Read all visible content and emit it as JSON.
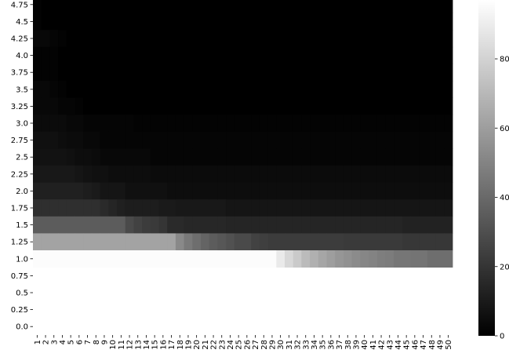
{
  "chart_data": {
    "type": "heatmap",
    "title": "",
    "xlabel": "",
    "ylabel": "",
    "x_categories": [
      "1",
      "2",
      "3",
      "4",
      "5",
      "6",
      "7",
      "8",
      "9",
      "10",
      "11",
      "12",
      "13",
      "14",
      "15",
      "16",
      "17",
      "18",
      "19",
      "20",
      "21",
      "22",
      "23",
      "24",
      "25",
      "26",
      "27",
      "28",
      "29",
      "30",
      "31",
      "32",
      "33",
      "34",
      "35",
      "36",
      "37",
      "38",
      "39",
      "40",
      "41",
      "42",
      "43",
      "44",
      "45",
      "46",
      "47",
      "48",
      "49",
      "50"
    ],
    "y_categories": [
      "4.75",
      "4.5",
      "4.25",
      "4.0",
      "3.75",
      "3.5",
      "3.25",
      "3.0",
      "2.75",
      "2.5",
      "2.25",
      "2.0",
      "1.75",
      "1.5",
      "1.25",
      "1.0",
      "0.75",
      "0.5",
      "0.25",
      "0.0"
    ],
    "cells": {
      "0": [
        [
          1,
          1
        ],
        [
          50,
          0
        ]
      ],
      "1": [
        [
          1,
          1
        ],
        [
          50,
          0
        ]
      ],
      "2": [
        [
          1,
          3
        ],
        [
          2,
          3
        ],
        [
          3,
          2
        ],
        [
          4,
          1
        ],
        [
          50,
          0
        ]
      ],
      "3": [
        [
          2,
          1
        ],
        [
          3,
          1
        ],
        [
          50,
          0
        ]
      ],
      "4": [
        [
          2,
          1
        ],
        [
          3,
          1
        ],
        [
          50,
          0
        ]
      ],
      "5": [
        [
          2,
          3
        ],
        [
          3,
          2
        ],
        [
          4,
          1
        ],
        [
          50,
          0
        ]
      ],
      "6": [
        [
          2,
          3
        ],
        [
          3,
          3
        ],
        [
          4,
          2
        ],
        [
          5,
          2
        ],
        [
          6,
          1
        ],
        [
          50,
          0
        ]
      ],
      "7": [
        [
          3,
          4
        ],
        [
          4,
          4
        ],
        [
          5,
          3
        ],
        [
          6,
          3
        ],
        [
          7,
          2
        ],
        [
          8,
          2
        ],
        [
          9,
          2
        ],
        [
          12,
          2
        ],
        [
          50,
          1
        ]
      ],
      "8": [
        [
          3,
          6
        ],
        [
          4,
          5
        ],
        [
          5,
          4
        ],
        [
          6,
          4
        ],
        [
          7,
          3
        ],
        [
          8,
          3
        ],
        [
          12,
          2
        ],
        [
          50,
          2
        ]
      ],
      "9": [
        [
          4,
          7
        ],
        [
          5,
          6
        ],
        [
          6,
          5
        ],
        [
          7,
          5
        ],
        [
          8,
          4
        ],
        [
          14,
          3
        ],
        [
          50,
          2
        ]
      ],
      "10": [
        [
          5,
          9
        ],
        [
          6,
          8
        ],
        [
          7,
          7
        ],
        [
          9,
          6
        ],
        [
          14,
          5
        ],
        [
          50,
          4
        ]
      ],
      "11": [
        [
          6,
          12
        ],
        [
          7,
          11
        ],
        [
          8,
          10
        ],
        [
          11,
          8
        ],
        [
          16,
          6
        ],
        [
          50,
          5
        ]
      ],
      "12": [
        [
          8,
          18
        ],
        [
          9,
          16
        ],
        [
          10,
          14
        ],
        [
          11,
          12
        ],
        [
          15,
          11
        ],
        [
          17,
          10
        ],
        [
          23,
          9
        ],
        [
          50,
          8
        ]
      ],
      "13": [
        [
          11,
          35
        ],
        [
          12,
          28
        ],
        [
          13,
          25
        ],
        [
          14,
          23
        ],
        [
          15,
          22
        ],
        [
          16,
          20
        ],
        [
          18,
          16
        ],
        [
          23,
          15
        ],
        [
          44,
          14
        ],
        [
          50,
          13
        ]
      ],
      "14": [
        [
          17,
          62
        ],
        [
          18,
          52
        ],
        [
          19,
          46
        ],
        [
          20,
          42
        ],
        [
          21,
          38
        ],
        [
          22,
          35
        ],
        [
          23,
          33
        ],
        [
          24,
          31
        ],
        [
          26,
          28
        ],
        [
          27,
          25
        ],
        [
          28,
          24
        ],
        [
          37,
          23
        ],
        [
          44,
          22
        ],
        [
          50,
          21
        ]
      ],
      "15": [
        [
          29,
          96
        ],
        [
          30,
          89
        ],
        [
          31,
          82
        ],
        [
          32,
          77
        ],
        [
          33,
          71
        ],
        [
          34,
          67
        ],
        [
          35,
          63
        ],
        [
          36,
          60
        ],
        [
          37,
          57
        ],
        [
          38,
          55
        ],
        [
          39,
          53
        ],
        [
          40,
          51
        ],
        [
          41,
          50
        ],
        [
          42,
          48
        ],
        [
          43,
          47
        ],
        [
          45,
          45
        ],
        [
          47,
          44
        ],
        [
          50,
          42
        ]
      ]
    },
    "colorbar": {
      "min": 0,
      "max": 97,
      "tick_values": [
        0,
        20,
        40,
        60,
        80
      ],
      "tick_labels": [
        "0",
        "20",
        "40",
        "60",
        "80"
      ],
      "colormap": "gray",
      "color_low": "#000000",
      "color_high": "#ffffff"
    },
    "missing_cell_color": "#ffffff"
  }
}
